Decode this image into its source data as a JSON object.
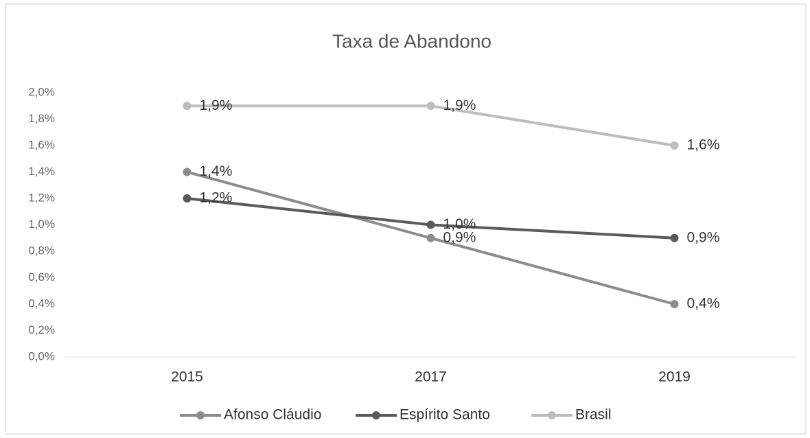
{
  "chart_data": {
    "type": "line",
    "title": "Taxa de Abandono",
    "categories": [
      "2015",
      "2017",
      "2019"
    ],
    "series": [
      {
        "name": "Afonso Cláudio",
        "color": "#8c8c8c",
        "values": [
          1.4,
          0.9,
          0.4
        ],
        "value_labels": [
          "1,4%",
          "0,9%",
          "0,4%"
        ]
      },
      {
        "name": "Espírito Santo",
        "color": "#5a5a5a",
        "values": [
          1.2,
          1.0,
          0.9
        ],
        "value_labels": [
          "1,2%",
          "1,0%",
          "0,9%"
        ]
      },
      {
        "name": "Brasil",
        "color": "#bdbdbd",
        "values": [
          1.9,
          1.9,
          1.6
        ],
        "value_labels": [
          "1,9%",
          "1,9%",
          "1,6%"
        ]
      }
    ],
    "ylim": [
      0,
      2
    ],
    "yticks": [
      {
        "value": 0,
        "label": "0,0%"
      },
      {
        "value": 0.2,
        "label": "0,2%"
      },
      {
        "value": 0.4,
        "label": "0,4%"
      },
      {
        "value": 0.6,
        "label": "0,6%"
      },
      {
        "value": 0.8,
        "label": "0,8%"
      },
      {
        "value": 1.0,
        "label": "1,0%"
      },
      {
        "value": 1.2,
        "label": "1,2%"
      },
      {
        "value": 1.4,
        "label": "1,4%"
      },
      {
        "value": 1.6,
        "label": "1,6%"
      },
      {
        "value": 1.8,
        "label": "1,8%"
      },
      {
        "value": 2.0,
        "label": "2,0%"
      }
    ],
    "grid": false,
    "legend": "bottom"
  }
}
